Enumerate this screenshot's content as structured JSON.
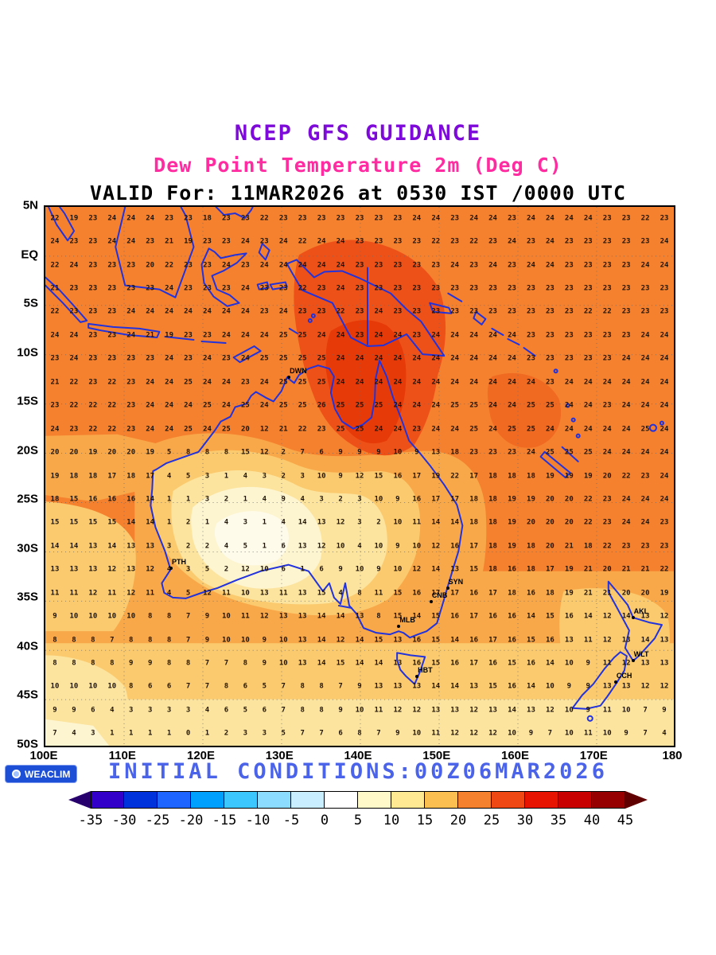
{
  "colors": {
    "title": "#7D0AD8",
    "subtitle": "#FF2BA0",
    "valid": "#000000",
    "coastline": "#2233DD",
    "initial_conditions": "#4A63E8",
    "logo_bg": "#1C4FD6"
  },
  "footer": {
    "logo_text": "WEACLIM",
    "initial_conditions": "INITIAL CONDITIONS:00Z06MAR2026"
  },
  "chart_data": {
    "type": "heatmap",
    "title": "NCEP GFS GUIDANCE",
    "subtitle": "Dew Point Temperature 2m (Deg C)",
    "valid_line": "VALID For: 11MAR2026 at 0530 IST /0000 UTC",
    "units": "Deg C",
    "lon_range": [
      100,
      180
    ],
    "lat_range": [
      -50,
      5
    ],
    "x_ticks": [
      "100E",
      "110E",
      "120E",
      "130E",
      "140E",
      "150E",
      "160E",
      "170E",
      "180"
    ],
    "y_ticks": [
      "5N",
      "EQ",
      "5S",
      "10S",
      "15S",
      "20S",
      "25S",
      "30S",
      "35S",
      "40S",
      "45S",
      "50S"
    ],
    "grid": {
      "lon_start": 100,
      "lon_step": 2.5,
      "lat_start": 5,
      "lat_step": -2.5,
      "cols": 33,
      "rows": 23
    },
    "stations": [
      {
        "code": "DWN",
        "lon": 131.0,
        "lat": -12.4
      },
      {
        "code": "PTH",
        "lon": 116.0,
        "lat": -31.9
      },
      {
        "code": "SYN",
        "lon": 151.2,
        "lat": -33.9
      },
      {
        "code": "CNB",
        "lon": 149.1,
        "lat": -35.3
      },
      {
        "code": "MLB",
        "lon": 145.0,
        "lat": -37.8
      },
      {
        "code": "HBT",
        "lon": 147.3,
        "lat": -42.9
      },
      {
        "code": "AKL",
        "lon": 174.8,
        "lat": -36.9
      },
      {
        "code": "WLT",
        "lon": 174.8,
        "lat": -41.3
      },
      {
        "code": "CCH",
        "lon": 172.6,
        "lat": -43.5
      }
    ],
    "colorbar": {
      "ticks": [
        "-35",
        "-30",
        "-25",
        "-20",
        "-15",
        "-10",
        "-5",
        "0",
        "5",
        "10",
        "15",
        "20",
        "25",
        "30",
        "35",
        "40",
        "45"
      ],
      "colors": [
        "#3200C8",
        "#0032DC",
        "#1E64FF",
        "#00A0FF",
        "#3CC8FF",
        "#8CDCFF",
        "#C8EEFF",
        "#FFFFFF",
        "#FFF8C8",
        "#FFE992",
        "#FBBE50",
        "#F5812F",
        "#F04814",
        "#E61400",
        "#C80000",
        "#960000"
      ],
      "arrow_left": "#28006E",
      "arrow_right": "#600000"
    },
    "values": [
      [
        22,
        19,
        23,
        24,
        24,
        24,
        23,
        23,
        18,
        23,
        23,
        22,
        23,
        23,
        23,
        23,
        23,
        23,
        23,
        24,
        24,
        23,
        24,
        24,
        23,
        24,
        24,
        24,
        24,
        23,
        23,
        22,
        23
      ],
      [
        24,
        23,
        23,
        24,
        24,
        23,
        21,
        19,
        23,
        23,
        24,
        23,
        24,
        22,
        24,
        24,
        23,
        23,
        23,
        23,
        22,
        23,
        22,
        23,
        24,
        23,
        24,
        23,
        23,
        23,
        23,
        23,
        24
      ],
      [
        22,
        24,
        23,
        23,
        23,
        20,
        22,
        23,
        23,
        24,
        23,
        24,
        24,
        24,
        24,
        24,
        23,
        23,
        23,
        23,
        23,
        24,
        23,
        24,
        23,
        24,
        24,
        23,
        23,
        23,
        23,
        24,
        24
      ],
      [
        21,
        23,
        23,
        23,
        23,
        23,
        24,
        23,
        23,
        23,
        24,
        23,
        23,
        22,
        23,
        24,
        23,
        23,
        23,
        23,
        23,
        23,
        23,
        23,
        23,
        23,
        23,
        23,
        23,
        23,
        23,
        23,
        23
      ],
      [
        22,
        23,
        23,
        23,
        24,
        24,
        24,
        24,
        24,
        24,
        24,
        23,
        24,
        23,
        23,
        22,
        23,
        24,
        23,
        23,
        23,
        23,
        23,
        23,
        23,
        23,
        23,
        23,
        22,
        22,
        23,
        23,
        23
      ],
      [
        24,
        24,
        23,
        23,
        24,
        21,
        19,
        23,
        23,
        24,
        24,
        24,
        25,
        25,
        24,
        24,
        23,
        24,
        24,
        23,
        24,
        24,
        24,
        24,
        24,
        23,
        23,
        23,
        23,
        23,
        23,
        24,
        24
      ],
      [
        23,
        24,
        23,
        23,
        23,
        23,
        24,
        23,
        24,
        23,
        24,
        25,
        25,
        25,
        25,
        24,
        24,
        24,
        24,
        24,
        24,
        24,
        24,
        24,
        24,
        23,
        23,
        23,
        23,
        23,
        24,
        24,
        24
      ],
      [
        21,
        22,
        23,
        22,
        23,
        24,
        24,
        25,
        24,
        24,
        23,
        24,
        25,
        25,
        25,
        24,
        24,
        24,
        24,
        24,
        24,
        24,
        24,
        24,
        24,
        24,
        23,
        24,
        24,
        24,
        24,
        24,
        24
      ],
      [
        23,
        22,
        22,
        22,
        23,
        24,
        24,
        24,
        25,
        24,
        25,
        24,
        25,
        25,
        26,
        25,
        25,
        25,
        24,
        24,
        24,
        25,
        25,
        24,
        24,
        25,
        25,
        24,
        24,
        23,
        24,
        24,
        24
      ],
      [
        24,
        23,
        22,
        22,
        23,
        24,
        24,
        25,
        24,
        25,
        20,
        12,
        21,
        22,
        23,
        25,
        25,
        24,
        24,
        23,
        24,
        24,
        25,
        24,
        25,
        25,
        24,
        24,
        24,
        24,
        24,
        25,
        24
      ],
      [
        20,
        20,
        19,
        20,
        20,
        19,
        5,
        8,
        8,
        8,
        15,
        12,
        2,
        7,
        6,
        9,
        9,
        9,
        10,
        9,
        13,
        18,
        23,
        23,
        23,
        24,
        25,
        25,
        25,
        24,
        24,
        24,
        24
      ],
      [
        19,
        18,
        18,
        17,
        18,
        17,
        4,
        5,
        3,
        1,
        4,
        3,
        2,
        3,
        10,
        9,
        12,
        15,
        16,
        17,
        19,
        22,
        17,
        18,
        18,
        18,
        19,
        19,
        19,
        20,
        22,
        23,
        24
      ],
      [
        18,
        15,
        16,
        16,
        16,
        14,
        1,
        1,
        3,
        2,
        1,
        4,
        9,
        4,
        3,
        2,
        3,
        10,
        9,
        16,
        17,
        17,
        18,
        18,
        19,
        19,
        20,
        20,
        22,
        23,
        24,
        24,
        24
      ],
      [
        15,
        15,
        15,
        15,
        14,
        14,
        1,
        2,
        1,
        4,
        3,
        1,
        4,
        14,
        13,
        12,
        3,
        2,
        10,
        11,
        14,
        14,
        18,
        18,
        19,
        20,
        20,
        20,
        22,
        23,
        24,
        24,
        23
      ],
      [
        14,
        14,
        13,
        14,
        13,
        13,
        3,
        2,
        2,
        4,
        5,
        1,
        6,
        13,
        12,
        10,
        4,
        10,
        9,
        10,
        12,
        16,
        17,
        18,
        19,
        18,
        20,
        21,
        18,
        22,
        23,
        23,
        23
      ],
      [
        13,
        13,
        13,
        12,
        13,
        12,
        4,
        3,
        5,
        2,
        12,
        10,
        6,
        1,
        6,
        9,
        10,
        9,
        10,
        12,
        14,
        13,
        15,
        18,
        16,
        18,
        17,
        19,
        21,
        20,
        21,
        21,
        22
      ],
      [
        11,
        11,
        12,
        11,
        12,
        11,
        4,
        5,
        12,
        11,
        10,
        13,
        11,
        13,
        15,
        4,
        8,
        11,
        15,
        16,
        17,
        17,
        16,
        17,
        18,
        16,
        18,
        19,
        21,
        21,
        20,
        20,
        19
      ],
      [
        9,
        10,
        10,
        10,
        10,
        8,
        8,
        7,
        9,
        10,
        11,
        12,
        13,
        13,
        14,
        14,
        13,
        8,
        15,
        14,
        15,
        16,
        17,
        16,
        16,
        14,
        15,
        16,
        14,
        12,
        14,
        13,
        12
      ],
      [
        8,
        8,
        8,
        7,
        8,
        8,
        8,
        7,
        9,
        10,
        10,
        9,
        10,
        13,
        14,
        12,
        14,
        15,
        13,
        16,
        15,
        14,
        16,
        17,
        16,
        15,
        16,
        13,
        11,
        12,
        13,
        14,
        13
      ],
      [
        8,
        8,
        8,
        8,
        9,
        9,
        8,
        8,
        7,
        7,
        8,
        9,
        10,
        13,
        14,
        15,
        14,
        14,
        13,
        16,
        15,
        16,
        17,
        16,
        15,
        16,
        14,
        10,
        9,
        11,
        12,
        13,
        13
      ],
      [
        10,
        10,
        10,
        10,
        8,
        6,
        6,
        7,
        7,
        8,
        6,
        5,
        7,
        8,
        8,
        7,
        9,
        13,
        13,
        13,
        14,
        14,
        13,
        15,
        16,
        14,
        10,
        9,
        9,
        13,
        13,
        12,
        12
      ],
      [
        9,
        9,
        6,
        4,
        3,
        3,
        3,
        3,
        4,
        6,
        5,
        6,
        7,
        8,
        8,
        9,
        10,
        11,
        12,
        12,
        13,
        13,
        12,
        13,
        14,
        13,
        12,
        10,
        9,
        11,
        10,
        7,
        9
      ],
      [
        7,
        4,
        3,
        1,
        1,
        1,
        1,
        0,
        1,
        2,
        3,
        3,
        5,
        7,
        7,
        6,
        8,
        7,
        9,
        10,
        11,
        12,
        12,
        12,
        10,
        9,
        7,
        10,
        11,
        10,
        9,
        7,
        4
      ]
    ]
  }
}
